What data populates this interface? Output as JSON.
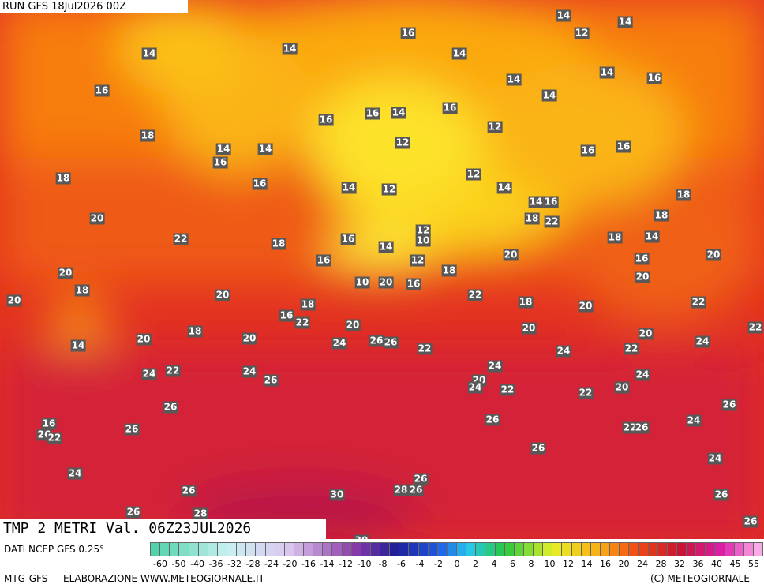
{
  "header": {
    "run": "RUN GFS 18Jul2026 00Z"
  },
  "map": {
    "title": "TMP 2 METRI Val. 06Z23JUL2026",
    "labels": [
      14,
      14,
      16,
      16,
      14,
      14,
      12,
      14,
      14,
      14,
      16,
      14,
      16,
      16,
      14,
      16,
      12,
      18,
      14,
      14,
      16,
      12,
      16,
      16,
      18,
      16,
      14,
      12,
      12,
      14,
      14,
      16,
      18,
      20,
      22,
      18,
      16,
      18,
      22,
      18,
      12,
      10,
      14,
      16,
      12,
      20,
      18,
      14,
      16,
      20,
      20,
      18,
      20,
      10,
      20,
      16,
      18,
      20,
      20,
      18,
      22,
      18,
      20,
      22,
      16,
      22,
      18,
      20,
      20,
      20,
      22,
      14,
      20,
      20,
      24,
      26,
      26,
      22,
      24,
      22,
      24,
      24,
      22,
      24,
      26,
      24,
      20,
      24,
      22,
      24,
      22,
      20,
      26,
      26,
      26,
      16,
      26,
      22,
      26,
      22,
      26,
      24,
      26,
      24,
      24,
      26,
      30,
      28,
      26,
      26,
      26,
      26,
      28,
      26,
      30
    ]
  },
  "footer": {
    "source": "DATI NCEP GFS 0.25°",
    "credit": "MTG-GFS — ELABORAZIONE WWW.METEOGIORNALE.IT",
    "copyright": "(C) METEOGIORNALE",
    "scale": [
      -60,
      -50,
      -40,
      -36,
      -32,
      -28,
      -24,
      -20,
      -16,
      -14,
      -12,
      -10,
      -8,
      -6,
      -4,
      -2,
      0,
      2,
      4,
      6,
      8,
      10,
      12,
      14,
      16,
      20,
      24,
      28,
      32,
      36,
      40,
      45,
      55
    ]
  }
}
